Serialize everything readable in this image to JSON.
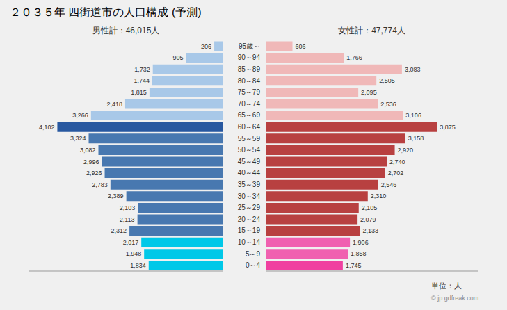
{
  "chart_data": {
    "type": "bar",
    "title": "２０３５年 四街道市の人口構成 (予測)",
    "orientation": "horizontal",
    "categories": [
      "0～4",
      "5～9",
      "10～14",
      "15～19",
      "20～24",
      "25～29",
      "30～34",
      "35～39",
      "40～44",
      "45～49",
      "50～54",
      "55～59",
      "60～64",
      "65～69",
      "70～74",
      "75～79",
      "80～84",
      "85～89",
      "90～94",
      "95歳～"
    ],
    "series": [
      {
        "name": "男性計：46,015人",
        "colors": [
          "#00c8e8",
          "#00c8e8",
          "#00c8e8",
          "#4878b0",
          "#4878b0",
          "#4878b0",
          "#4878b0",
          "#4878b0",
          "#4878b0",
          "#4878b0",
          "#4878b0",
          "#4878b0",
          "#2858a0",
          "#a8c8e8",
          "#a8c8e8",
          "#a8c8e8",
          "#a8c8e8",
          "#a8c8e8",
          "#a8c8e8",
          "#a8c8e8"
        ],
        "values": [
          1834,
          1948,
          2017,
          2312,
          2113,
          2103,
          2389,
          2783,
          2926,
          2996,
          3082,
          3324,
          4102,
          3266,
          2418,
          1815,
          1744,
          1732,
          905,
          206
        ],
        "value_labels": [
          "1,834",
          "1,948",
          "2,017",
          "2,312",
          "2,113",
          "2,103",
          "2,389",
          "2,783",
          "2,926",
          "2,996",
          "3,082",
          "3,324",
          "4,102",
          "3,266",
          "2,418",
          "1,815",
          "1,744",
          "1,732",
          "905",
          "206"
        ]
      },
      {
        "name": "女性計：47,774人",
        "colors": [
          "#f040a0",
          "#f060b0",
          "#f060b0",
          "#b84040",
          "#b84040",
          "#b84040",
          "#b84040",
          "#b84040",
          "#b84040",
          "#b84040",
          "#b84040",
          "#b84040",
          "#b84040",
          "#f0b8b8",
          "#f0b8b8",
          "#f0b8b8",
          "#f0b8b8",
          "#f0b8b8",
          "#f0b8b8",
          "#f0b8b8"
        ],
        "values": [
          1745,
          1858,
          1906,
          2133,
          2079,
          2105,
          2310,
          2546,
          2702,
          2740,
          2920,
          3158,
          3875,
          3106,
          2536,
          2095,
          2505,
          3083,
          1766,
          606
        ],
        "value_labels": [
          "1,745",
          "1,858",
          "1,906",
          "2,133",
          "2,079",
          "2,105",
          "2,310",
          "2,546",
          "2,702",
          "2,740",
          "2,920",
          "3,158",
          "3,875",
          "3,106",
          "2,536",
          "2,095",
          "2,505",
          "3,083",
          "1,766",
          "606"
        ]
      }
    ],
    "xlim": [
      0,
      4800
    ],
    "tick_labels": "y",
    "data_labels": true,
    "grid": false,
    "annotations": [
      "単位：人",
      "© jp.gdfreak.com"
    ]
  }
}
